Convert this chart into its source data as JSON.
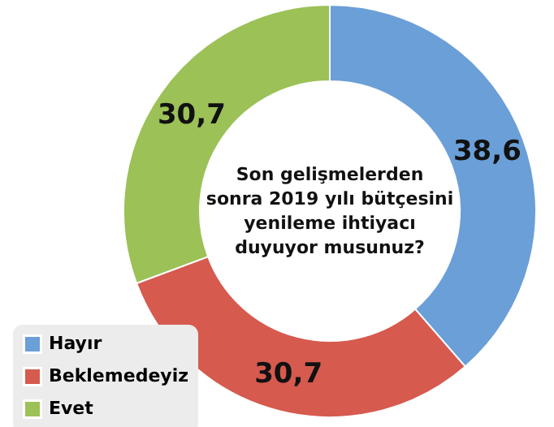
{
  "chart_data": {
    "type": "donut",
    "title": "Son gelişmelerden\nsonra 2019 yılı bütçesini\nyenileme ihtiyacı\nduyuyor musunuz?",
    "categories": [
      "Hayır",
      "Beklemedeyiz",
      "Evet"
    ],
    "values": [
      38.6,
      30.7,
      30.7
    ],
    "colors": [
      "#6a9fd8",
      "#d65a4e",
      "#9bc157"
    ],
    "value_labels": [
      "38,6",
      "30,7",
      "30,7"
    ],
    "legend": "bottom left"
  }
}
